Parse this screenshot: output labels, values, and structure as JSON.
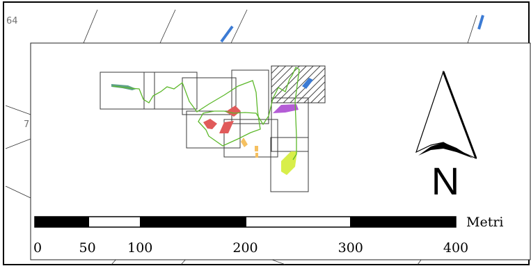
{
  "frame": {
    "corner_label_top": "64",
    "edge_label_left": "7"
  },
  "north_arrow": {
    "letter": "N"
  },
  "scale_bar": {
    "unit": "Metri",
    "ticks": [
      "0",
      "50",
      "100",
      "200",
      "300",
      "400"
    ],
    "tick_values": [
      0,
      50,
      100,
      200,
      300,
      400
    ]
  },
  "colors": {
    "survey_line": "#5cb82a",
    "area_teal": "#5fa18a",
    "area_red": "#e05a5a",
    "area_purple": "#b45cd6",
    "area_yellow": "#f5c060",
    "area_lime": "#d8ee4a",
    "area_blue": "#3c7bd4",
    "tile_stroke": "#3a3a3a",
    "hatch": "#444444"
  },
  "legend_note": ""
}
